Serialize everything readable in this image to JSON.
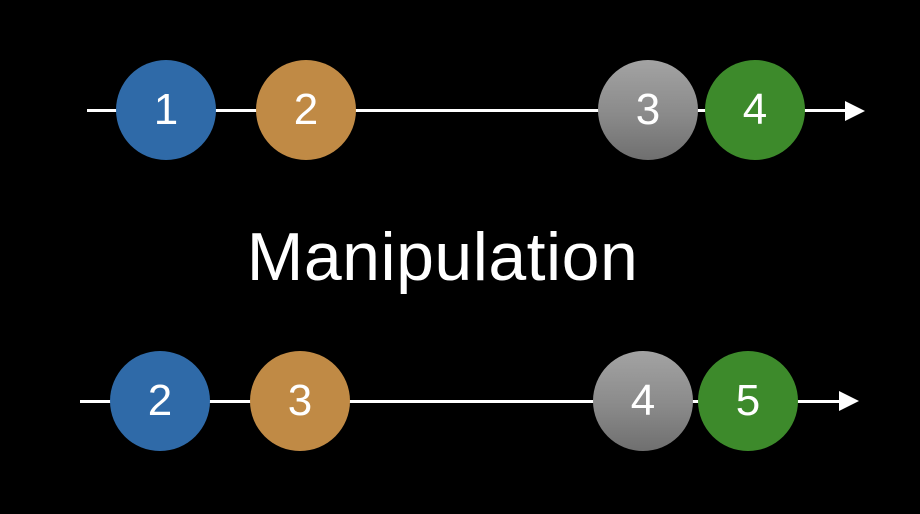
{
  "title": "Manipulation",
  "colors": {
    "background": "#000000",
    "line": "#ffffff",
    "blue": "#2f6aa8",
    "orange": "#c08a45",
    "gray": "#8e8e8e",
    "green": "#3d8a2b"
  },
  "input_stream": {
    "marbles": [
      {
        "label": "1",
        "color": "blue"
      },
      {
        "label": "2",
        "color": "orange"
      },
      {
        "label": "3",
        "color": "gray"
      },
      {
        "label": "4",
        "color": "green"
      }
    ]
  },
  "output_stream": {
    "marbles": [
      {
        "label": "2",
        "color": "blue"
      },
      {
        "label": "3",
        "color": "orange"
      },
      {
        "label": "4",
        "color": "gray"
      },
      {
        "label": "5",
        "color": "green"
      }
    ]
  }
}
